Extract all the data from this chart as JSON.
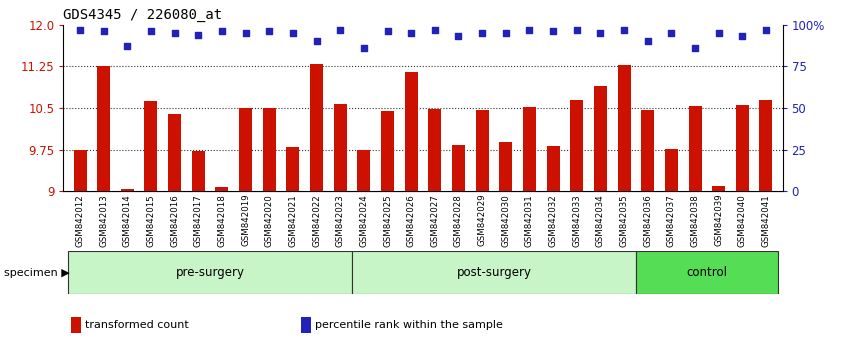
{
  "title": "GDS4345 / 226080_at",
  "samples": [
    "GSM842012",
    "GSM842013",
    "GSM842014",
    "GSM842015",
    "GSM842016",
    "GSM842017",
    "GSM842018",
    "GSM842019",
    "GSM842020",
    "GSM842021",
    "GSM842022",
    "GSM842023",
    "GSM842024",
    "GSM842025",
    "GSM842026",
    "GSM842027",
    "GSM842028",
    "GSM842029",
    "GSM842030",
    "GSM842031",
    "GSM842032",
    "GSM842033",
    "GSM842034",
    "GSM842035",
    "GSM842036",
    "GSM842037",
    "GSM842038",
    "GSM842039",
    "GSM842040",
    "GSM842041"
  ],
  "red_values": [
    9.75,
    11.25,
    9.03,
    10.62,
    10.4,
    9.72,
    9.08,
    10.5,
    10.5,
    9.8,
    11.3,
    10.58,
    9.75,
    10.44,
    11.15,
    10.48,
    9.84,
    10.47,
    9.88,
    10.52,
    9.82,
    10.65,
    10.9,
    11.27,
    10.47,
    9.76,
    10.53,
    9.1,
    10.56,
    10.65
  ],
  "blue_values": [
    97,
    96,
    87,
    96,
    95,
    94,
    96,
    95,
    96,
    95,
    90,
    97,
    86,
    96,
    95,
    97,
    93,
    95,
    95,
    97,
    96,
    97,
    95,
    97,
    90,
    95,
    86,
    95,
    93,
    97
  ],
  "groups": [
    {
      "label": "pre-surgery",
      "start": 0,
      "end": 12,
      "color": "#c8f5c8"
    },
    {
      "label": "post-surgery",
      "start": 12,
      "end": 24,
      "color": "#c8f5c8"
    },
    {
      "label": "control",
      "start": 24,
      "end": 30,
      "color": "#55dd55"
    }
  ],
  "ylim_left": [
    9.0,
    12.0
  ],
  "ylim_right": [
    0,
    100
  ],
  "yticks_left": [
    9.0,
    9.75,
    10.5,
    11.25,
    12.0
  ],
  "yticks_right": [
    0,
    25,
    50,
    75,
    100
  ],
  "bar_color": "#cc1100",
  "dot_color": "#2222bb",
  "bar_bottom": 9.0,
  "hline_color": "#333333",
  "hlines": [
    9.75,
    10.5,
    11.25
  ],
  "xtick_bg": "#c8c8c8",
  "group_border": "#333333",
  "legend_items": [
    {
      "label": "transformed count",
      "color": "#cc1100"
    },
    {
      "label": "percentile rank within the sample",
      "color": "#2222bb"
    }
  ]
}
